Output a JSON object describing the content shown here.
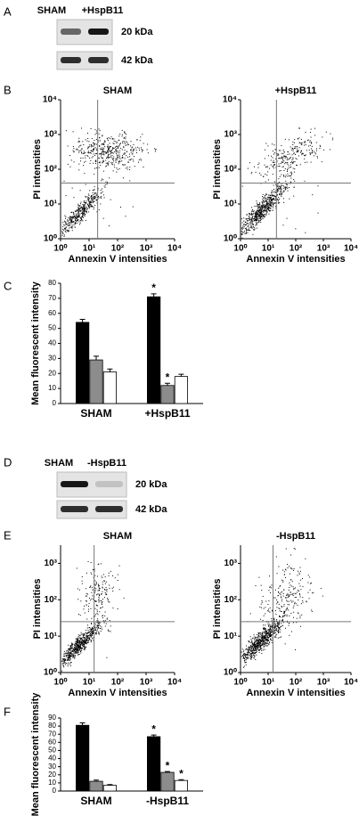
{
  "panel_labels": [
    "A",
    "B",
    "C",
    "D",
    "E",
    "F"
  ],
  "blots": [
    {
      "lanes": [
        "SHAM",
        "+HspB11"
      ],
      "bands": [
        "20 kDa",
        "42 kDa"
      ]
    },
    {
      "lanes": [
        "SHAM",
        "-HspB11"
      ],
      "bands": [
        "20 kDa",
        "42 kDa"
      ]
    }
  ],
  "chart_data": [
    {
      "type": "scatter",
      "title": "SHAM",
      "x_label": "Annexin V intensities",
      "y_label": "PI intensities",
      "log_x": true,
      "log_y": true,
      "xlim": [
        1,
        10000
      ],
      "ylim": [
        1,
        10000
      ],
      "xticks": [
        {
          "value": 1,
          "label": "10⁰"
        },
        {
          "value": 10,
          "label": "10¹"
        },
        {
          "value": 100,
          "label": "10²"
        },
        {
          "value": 1000,
          "label": "10³"
        },
        {
          "value": 10000,
          "label": "10⁴"
        }
      ],
      "yticks": [
        {
          "value": 1,
          "label": "10⁰"
        },
        {
          "value": 10,
          "label": "10¹"
        },
        {
          "value": 100,
          "label": "10²"
        },
        {
          "value": 1000,
          "label": "10³"
        },
        {
          "value": 10000,
          "label": "10⁴"
        }
      ],
      "quadrant_gate": {
        "x": 20,
        "y": 40
      }
    },
    {
      "type": "scatter",
      "title": "+HspB11",
      "x_label": "Annexin V intensities",
      "y_label": "PI intensities",
      "log_x": true,
      "log_y": true,
      "xlim": [
        1,
        10000
      ],
      "ylim": [
        1,
        10000
      ],
      "xticks": [
        {
          "value": 1,
          "label": "10⁰"
        },
        {
          "value": 10,
          "label": "10¹"
        },
        {
          "value": 100,
          "label": "10²"
        },
        {
          "value": 1000,
          "label": "10³"
        },
        {
          "value": 10000,
          "label": "10⁴"
        }
      ],
      "yticks": [
        {
          "value": 1,
          "label": "10⁰"
        },
        {
          "value": 10,
          "label": "10¹"
        },
        {
          "value": 100,
          "label": "10²"
        },
        {
          "value": 1000,
          "label": "10³"
        },
        {
          "value": 10000,
          "label": "10⁴"
        }
      ],
      "quadrant_gate": {
        "x": 20,
        "y": 40
      }
    },
    {
      "type": "bar",
      "y_label": "Mean fluorescent intensity",
      "categories": [
        "SHAM",
        "+HspB11"
      ],
      "ylim": [
        0,
        80
      ],
      "yticks": [
        0,
        10,
        20,
        30,
        40,
        50,
        60,
        70,
        80
      ],
      "series": [
        {
          "color": "#000000",
          "values": [
            54,
            71
          ],
          "errors": [
            2,
            2
          ],
          "significance": [
            null,
            "*"
          ]
        },
        {
          "color": "#8c8c8c",
          "values": [
            29,
            12
          ],
          "errors": [
            2.5,
            1.5
          ],
          "significance": [
            null,
            "*"
          ]
        },
        {
          "color": "#ffffff",
          "values": [
            21,
            18
          ],
          "errors": [
            2,
            1.5
          ],
          "significance": [
            null,
            null
          ]
        }
      ]
    },
    {
      "type": "scatter",
      "title": "SHAM",
      "x_label": "Annexin V intensities",
      "y_label": "PI intensities",
      "log_x": true,
      "log_y": true,
      "xlim": [
        1,
        10000
      ],
      "ylim": [
        1,
        3162
      ],
      "xticks": [
        {
          "value": 1,
          "label": "10⁰"
        },
        {
          "value": 10,
          "label": "10¹"
        },
        {
          "value": 100,
          "label": "10²"
        },
        {
          "value": 1000,
          "label": "10³"
        },
        {
          "value": 10000,
          "label": "10⁴"
        }
      ],
      "yticks": [
        {
          "value": 1,
          "label": "10⁰"
        },
        {
          "value": 10,
          "label": "10¹"
        },
        {
          "value": 100,
          "label": "10²"
        },
        {
          "value": 1000,
          "label": "10³"
        }
      ],
      "quadrant_gate": {
        "x": 15,
        "y": 25
      }
    },
    {
      "type": "scatter",
      "title": "-HspB11",
      "x_label": "Annexin V intensities",
      "y_label": "PI intensities",
      "log_x": true,
      "log_y": true,
      "xlim": [
        1,
        10000
      ],
      "ylim": [
        1,
        3162
      ],
      "xticks": [
        {
          "value": 1,
          "label": "10⁰"
        },
        {
          "value": 10,
          "label": "10¹"
        },
        {
          "value": 100,
          "label": "10²"
        },
        {
          "value": 1000,
          "label": "10³"
        },
        {
          "value": 10000,
          "label": "10⁴"
        }
      ],
      "yticks": [
        {
          "value": 1,
          "label": "10⁰"
        },
        {
          "value": 10,
          "label": "10¹"
        },
        {
          "value": 100,
          "label": "10²"
        },
        {
          "value": 1000,
          "label": "10³"
        }
      ],
      "quadrant_gate": {
        "x": 15,
        "y": 25
      }
    },
    {
      "type": "bar",
      "y_label": "Mean fluorescent intensity",
      "categories": [
        "SHAM",
        "-HspB11"
      ],
      "ylim": [
        0,
        90
      ],
      "yticks": [
        0,
        10,
        20,
        30,
        40,
        50,
        60,
        70,
        80,
        90
      ],
      "series": [
        {
          "color": "#000000",
          "values": [
            81,
            67
          ],
          "errors": [
            3,
            2
          ],
          "significance": [
            null,
            "*"
          ]
        },
        {
          "color": "#8c8c8c",
          "values": [
            12,
            23
          ],
          "errors": [
            1.5,
            1
          ],
          "significance": [
            null,
            "*"
          ]
        },
        {
          "color": "#ffffff",
          "values": [
            7,
            13
          ],
          "errors": [
            1,
            1
          ],
          "significance": [
            null,
            "*"
          ]
        }
      ]
    }
  ]
}
